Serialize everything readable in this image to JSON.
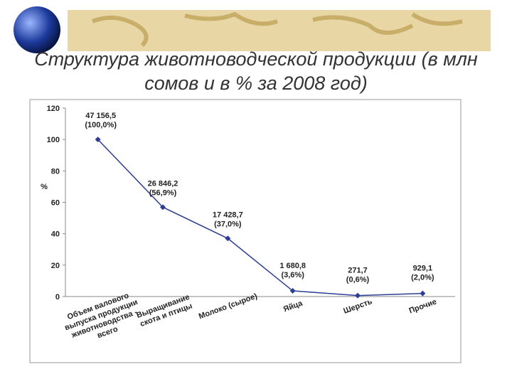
{
  "chart_data": {
    "type": "line",
    "title": "Структура животноводческой продукции (в млн сомов и в % за 2008 год)",
    "y_label": "%",
    "categories": [
      "Объем валового выпуска продукции животноводства - всего",
      "Выращивание скота и птицы",
      "Молоко (сырое)",
      "Яйца",
      "Шерсть",
      "Прочие"
    ],
    "series": [
      {
        "color": "#2e3d94",
        "values": [
          100,
          56.9,
          37.0,
          3.6,
          0.6,
          2.0
        ],
        "value_labels": [
          "(100,0%)",
          "(56,9%)",
          "(37,0%)",
          "(3,6%)",
          "(0,6%)",
          "(2,0%)"
        ],
        "amount_labels": [
          "47 156,5",
          "26 846,2",
          "17 428,7",
          "1 680,8",
          "271,7",
          "929,1"
        ]
      }
    ],
    "ylim": [
      0,
      120
    ],
    "yticks": [
      0,
      20,
      40,
      60,
      80,
      100,
      120
    ],
    "grid": false
  }
}
